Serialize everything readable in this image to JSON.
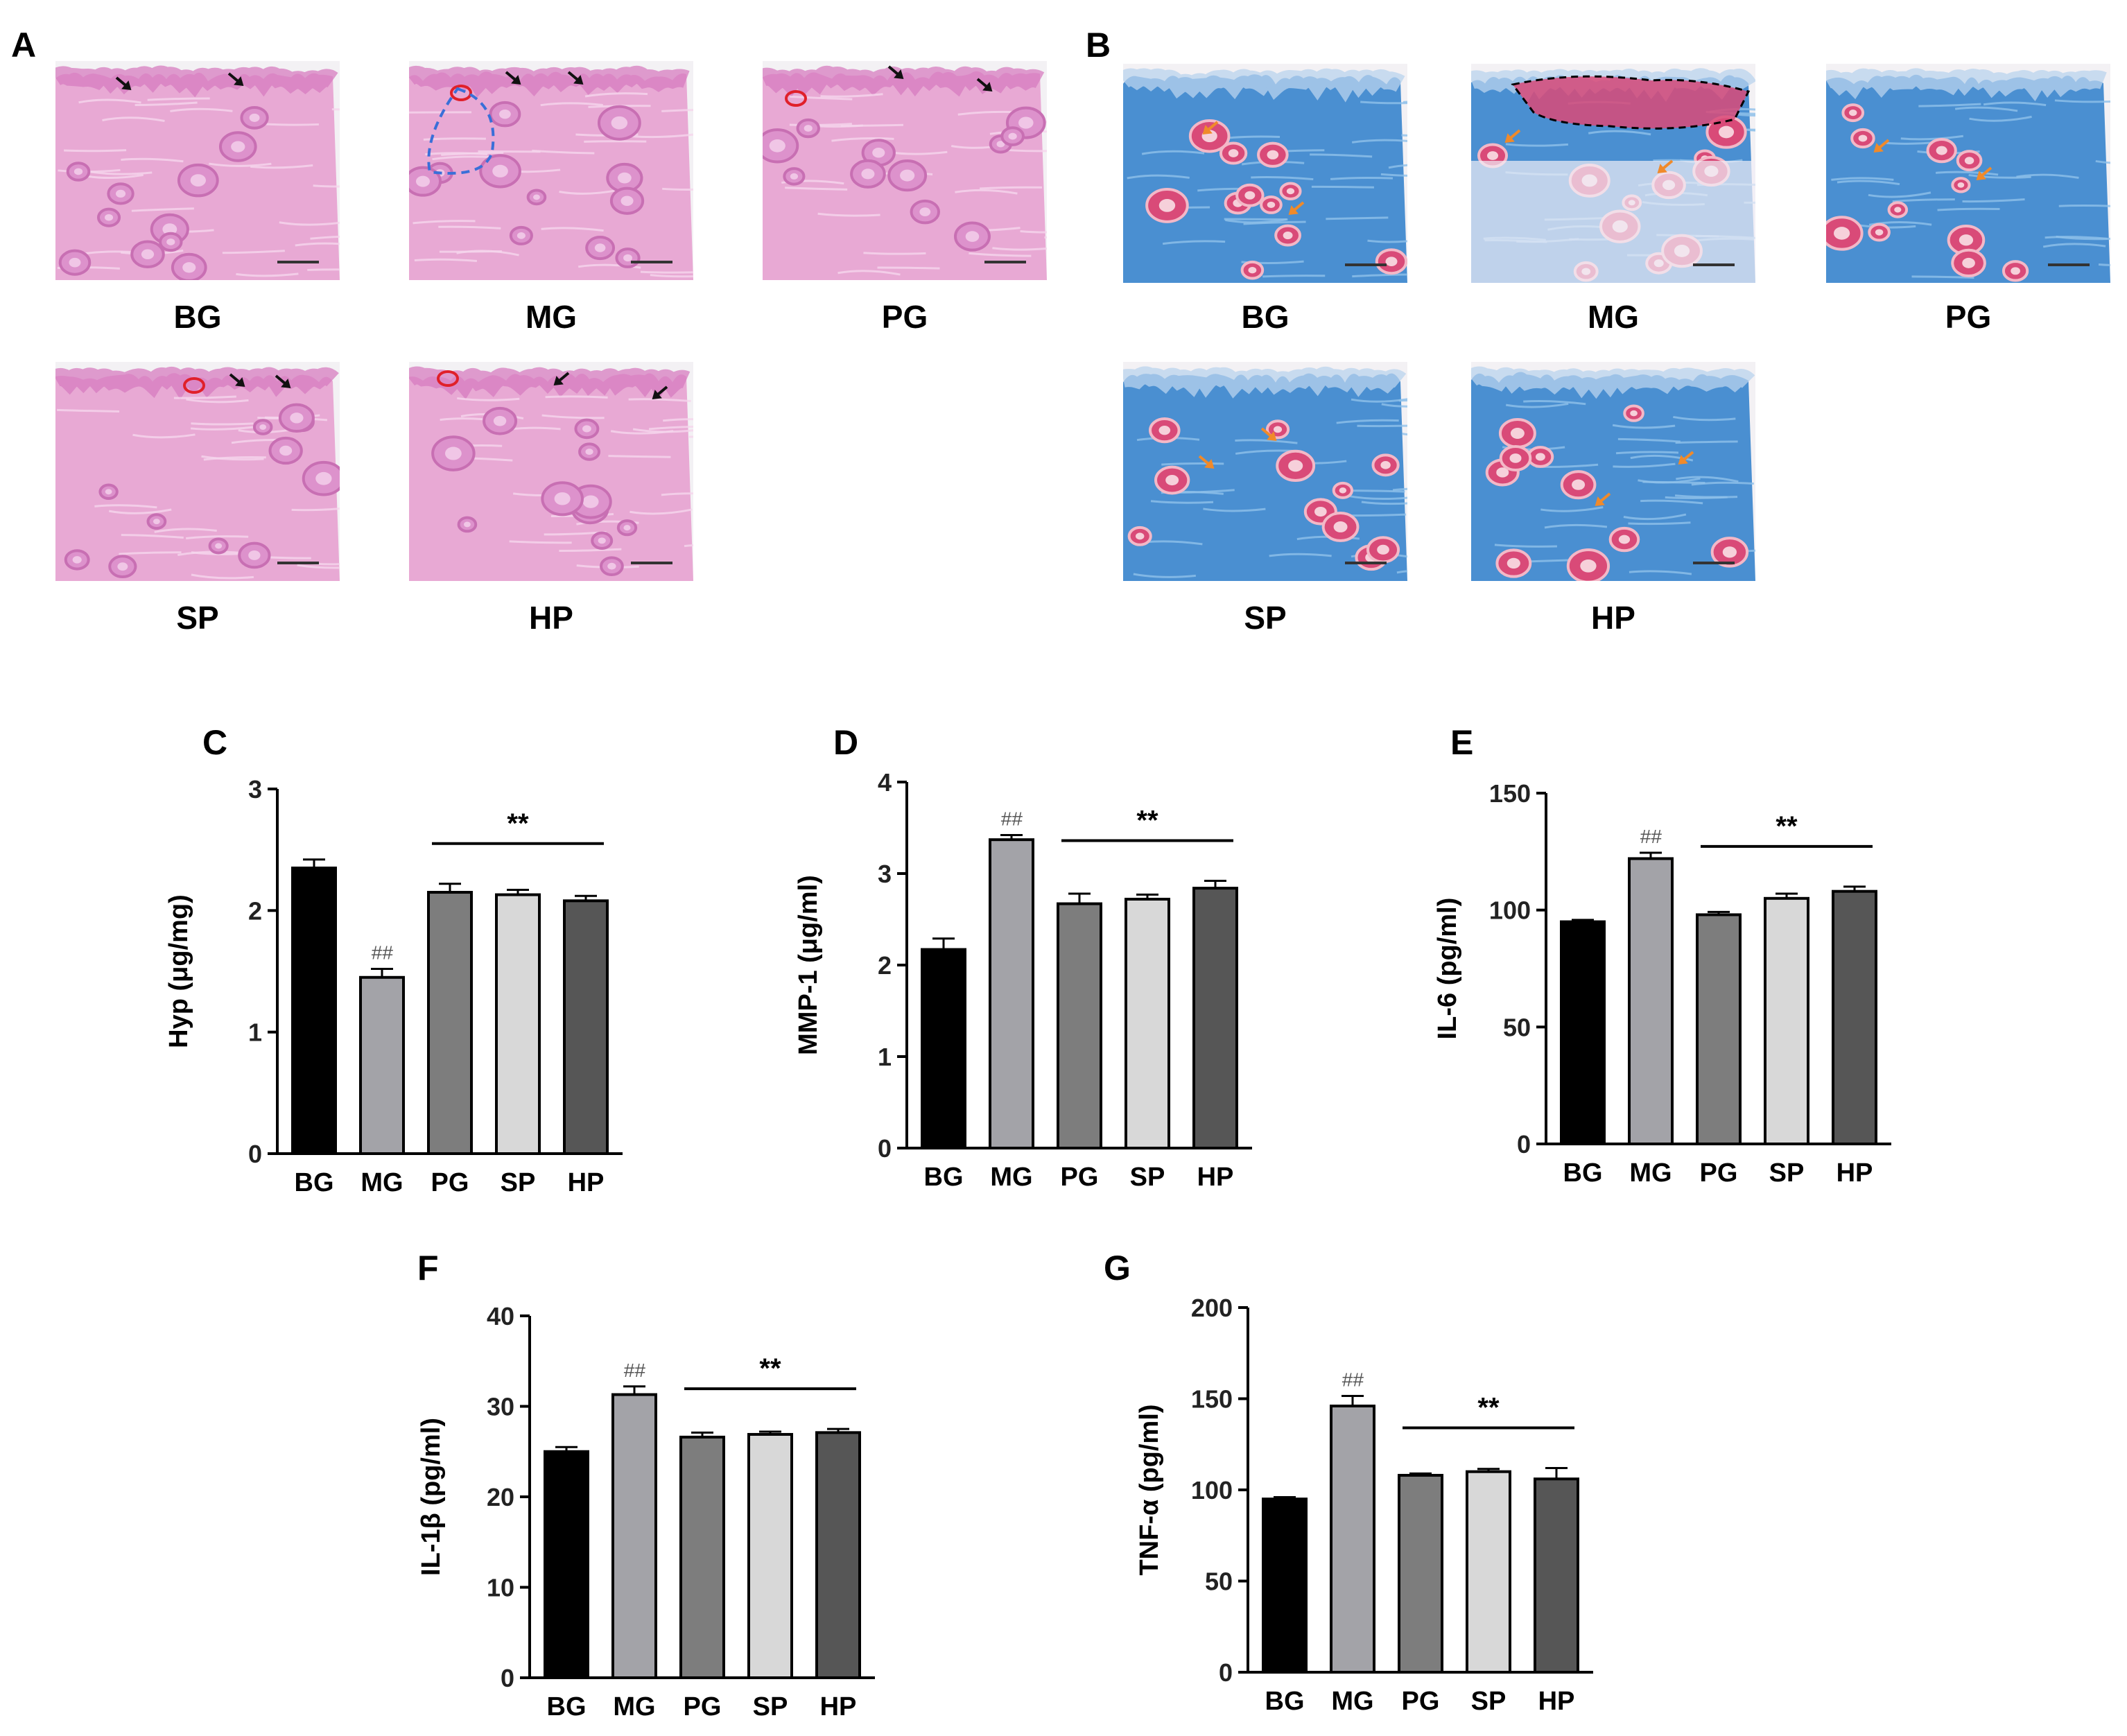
{
  "panels": {
    "A": {
      "letter": "A",
      "images": [
        {
          "group": "BG",
          "style": "he"
        },
        {
          "group": "MG",
          "style": "he"
        },
        {
          "group": "PG",
          "style": "he"
        },
        {
          "group": "SP",
          "style": "he"
        },
        {
          "group": "HP",
          "style": "he"
        }
      ]
    },
    "B": {
      "letter": "B",
      "images": [
        {
          "group": "BG",
          "style": "masson"
        },
        {
          "group": "MG",
          "style": "masson"
        },
        {
          "group": "PG",
          "style": "masson"
        },
        {
          "group": "SP",
          "style": "masson"
        },
        {
          "group": "HP",
          "style": "masson"
        }
      ]
    }
  },
  "colors": {
    "he_background": "#e8a9d4",
    "he_epidermis": "#d77cc0",
    "masson_collagen": "#4a8fd1",
    "masson_muscle": "#d94a78",
    "arrow_black": "#111111",
    "arrow_orange": "#f08a2a",
    "circle_red": "#e0202a",
    "dash_blue": "#3a6fd8"
  },
  "chart_data": [
    {
      "panel": "C",
      "type": "bar",
      "categories": [
        "BG",
        "MG",
        "PG",
        "SP",
        "HP"
      ],
      "values": [
        2.35,
        1.45,
        2.15,
        2.13,
        2.08
      ],
      "errors": [
        0.07,
        0.07,
        0.07,
        0.04,
        0.04
      ],
      "ylabel": "Hyp (μg/mg)",
      "ylim": [
        0,
        3
      ],
      "yticks": [
        0,
        1,
        2,
        3
      ],
      "annotations": [
        {
          "category": "MG",
          "text": "##"
        }
      ],
      "bracket": {
        "from": "PG",
        "to": "HP",
        "text": "**"
      }
    },
    {
      "panel": "D",
      "type": "bar",
      "categories": [
        "BG",
        "MG",
        "PG",
        "SP",
        "HP"
      ],
      "values": [
        2.17,
        3.37,
        2.67,
        2.72,
        2.84
      ],
      "errors": [
        0.12,
        0.05,
        0.11,
        0.05,
        0.08
      ],
      "ylabel": "MMP-1 (μg/ml)",
      "ylim": [
        0,
        4
      ],
      "yticks": [
        0,
        1,
        2,
        3,
        4
      ],
      "annotations": [
        {
          "category": "MG",
          "text": "##"
        }
      ],
      "bracket": {
        "from": "PG",
        "to": "HP",
        "text": "**"
      }
    },
    {
      "panel": "E",
      "type": "bar",
      "categories": [
        "BG",
        "MG",
        "PG",
        "SP",
        "HP"
      ],
      "values": [
        95,
        122,
        98,
        105,
        108
      ],
      "errors": [
        0.8,
        2.5,
        1.2,
        2.0,
        2.0
      ],
      "ylabel": "IL-6 (pg/ml)",
      "ylim": [
        0,
        150
      ],
      "yticks": [
        0,
        50,
        100,
        150
      ],
      "annotations": [
        {
          "category": "MG",
          "text": "##"
        }
      ],
      "bracket": {
        "from": "PG",
        "to": "HP",
        "text": "**"
      }
    },
    {
      "panel": "F",
      "type": "bar",
      "categories": [
        "BG",
        "MG",
        "PG",
        "SP",
        "HP"
      ],
      "values": [
        25.0,
        31.3,
        26.6,
        26.9,
        27.1
      ],
      "errors": [
        0.5,
        0.9,
        0.5,
        0.3,
        0.4
      ],
      "ylabel": "IL-1β (pg/ml)",
      "ylim": [
        0,
        40
      ],
      "yticks": [
        0,
        10,
        20,
        30,
        40
      ],
      "annotations": [
        {
          "category": "MG",
          "text": "##"
        }
      ],
      "bracket": {
        "from": "PG",
        "to": "HP",
        "text": "**"
      }
    },
    {
      "panel": "G",
      "type": "bar",
      "categories": [
        "BG",
        "MG",
        "PG",
        "SP",
        "HP"
      ],
      "values": [
        95,
        146,
        108,
        110,
        106
      ],
      "errors": [
        1.0,
        5.5,
        1.0,
        1.5,
        6.0
      ],
      "ylabel": "TNF-α (pg/ml)",
      "ylim": [
        0,
        200
      ],
      "yticks": [
        0,
        50,
        100,
        150,
        200
      ],
      "annotations": [
        {
          "category": "MG",
          "text": "##"
        }
      ],
      "bracket": {
        "from": "PG",
        "to": "HP",
        "text": "**"
      }
    }
  ],
  "bar_colors": [
    "#000000",
    "#a3a3a8",
    "#7d7d7d",
    "#d8d8d8",
    "#565656"
  ]
}
